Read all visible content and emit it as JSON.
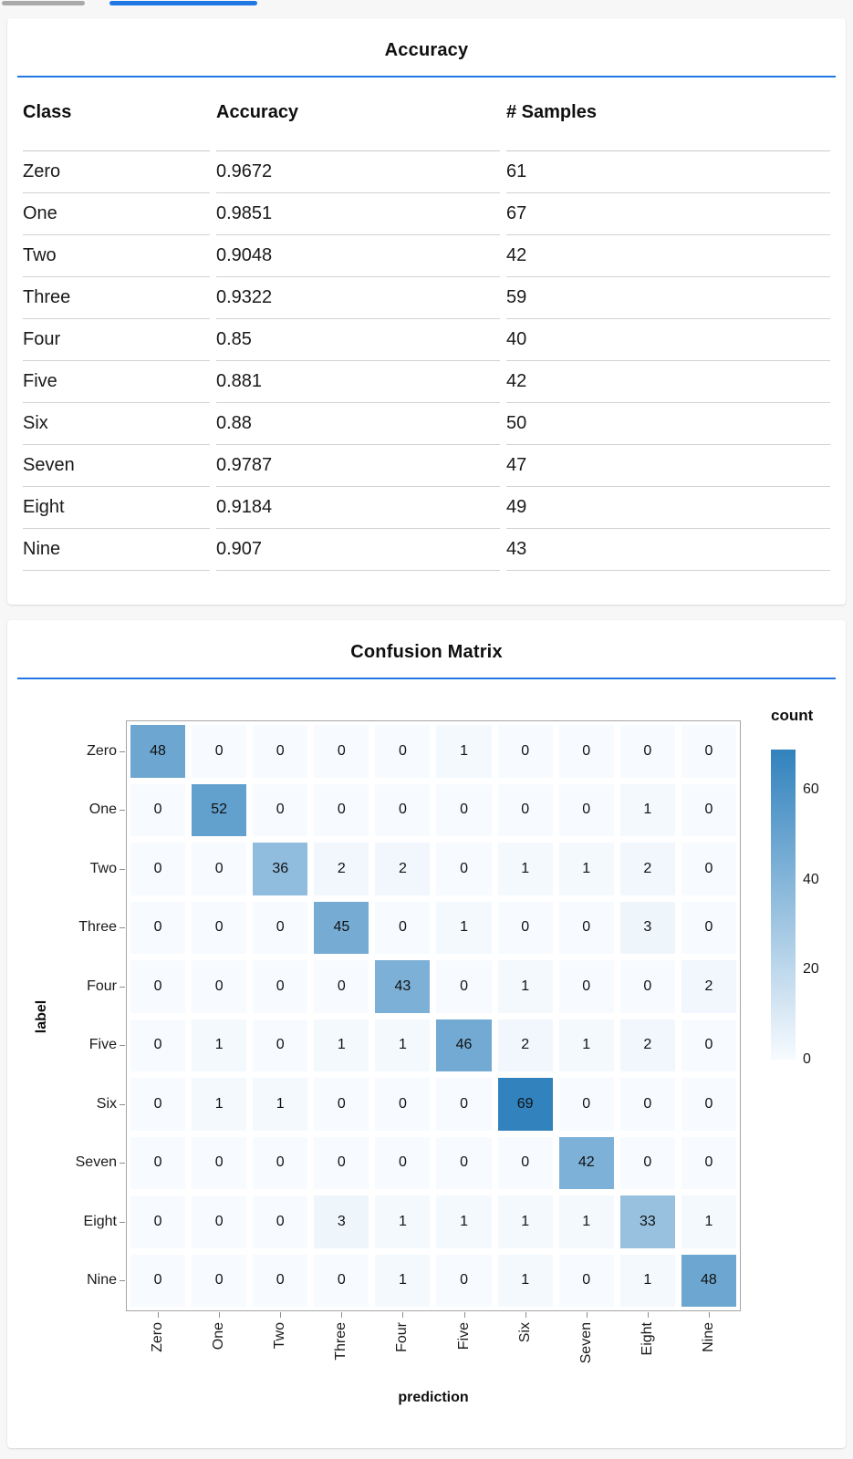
{
  "colors": {
    "accent_blue": "#2178e5",
    "inactive_tab": "#a9a9a9",
    "page_background": "#f7f7f8",
    "heatmap_low": "#f7fbff",
    "heatmap_high": "#3182bd"
  },
  "accuracy_panel": {
    "title": "Accuracy",
    "table": {
      "headers": [
        "Class",
        "Accuracy",
        "# Samples"
      ],
      "rows": [
        [
          "Zero",
          "0.9672",
          "61"
        ],
        [
          "One",
          "0.9851",
          "67"
        ],
        [
          "Two",
          "0.9048",
          "42"
        ],
        [
          "Three",
          "0.9322",
          "59"
        ],
        [
          "Four",
          "0.85",
          "40"
        ],
        [
          "Five",
          "0.881",
          "42"
        ],
        [
          "Six",
          "0.88",
          "50"
        ],
        [
          "Seven",
          "0.9787",
          "47"
        ],
        [
          "Eight",
          "0.9184",
          "49"
        ],
        [
          "Nine",
          "0.907",
          "43"
        ]
      ]
    }
  },
  "confusion_panel": {
    "title": "Confusion Matrix"
  },
  "chart_data": {
    "type": "heatmap",
    "title": "Confusion Matrix",
    "xlabel": "prediction",
    "ylabel": "label",
    "x_categories": [
      "Zero",
      "One",
      "Two",
      "Three",
      "Four",
      "Five",
      "Six",
      "Seven",
      "Eight",
      "Nine"
    ],
    "y_categories": [
      "Zero",
      "One",
      "Two",
      "Three",
      "Four",
      "Five",
      "Six",
      "Seven",
      "Eight",
      "Nine"
    ],
    "matrix": [
      [
        48,
        0,
        0,
        0,
        0,
        1,
        0,
        0,
        0,
        0
      ],
      [
        0,
        52,
        0,
        0,
        0,
        0,
        0,
        0,
        1,
        0
      ],
      [
        0,
        0,
        36,
        2,
        2,
        0,
        1,
        1,
        2,
        0
      ],
      [
        0,
        0,
        0,
        45,
        0,
        1,
        0,
        0,
        3,
        0
      ],
      [
        0,
        0,
        0,
        0,
        43,
        0,
        1,
        0,
        0,
        2
      ],
      [
        0,
        1,
        0,
        1,
        1,
        46,
        2,
        1,
        2,
        0
      ],
      [
        0,
        1,
        1,
        0,
        0,
        0,
        69,
        0,
        0,
        0
      ],
      [
        0,
        0,
        0,
        0,
        0,
        0,
        0,
        42,
        0,
        0
      ],
      [
        0,
        0,
        0,
        3,
        1,
        1,
        1,
        1,
        33,
        1
      ],
      [
        0,
        0,
        0,
        0,
        1,
        0,
        1,
        0,
        1,
        48
      ]
    ],
    "legend": {
      "title": "count",
      "ticks": [
        60,
        40,
        20,
        0
      ],
      "domain": [
        0,
        69
      ],
      "position": "right"
    },
    "grid": false
  }
}
